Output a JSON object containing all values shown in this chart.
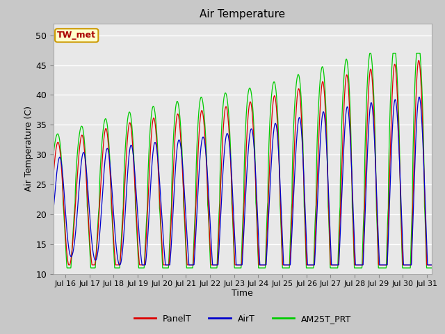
{
  "title": "Air Temperature",
  "xlabel": "Time",
  "ylabel": "Air Temperature (C)",
  "ylim": [
    10,
    52
  ],
  "yticks": [
    10,
    15,
    20,
    25,
    30,
    35,
    40,
    45,
    50
  ],
  "fig_bg_color": "#c8c8c8",
  "plot_bg_color": "#e8e8e8",
  "legend_labels": [
    "PanelT",
    "AirT",
    "AM25T_PRT"
  ],
  "legend_colors": [
    "#dd0000",
    "#0000cc",
    "#00cc00"
  ],
  "annotation_text": "TW_met",
  "annotation_fg": "#aa0000",
  "annotation_bg": "#ffffcc",
  "annotation_border": "#cc9900",
  "start_day": 15.5,
  "end_day": 31.2,
  "xtick_days": [
    16,
    17,
    18,
    19,
    20,
    21,
    22,
    23,
    24,
    25,
    26,
    27,
    28,
    29,
    30,
    31
  ],
  "xtick_labels": [
    "Jul 16",
    "Jul 17",
    "Jul 18",
    "Jul 19",
    "Jul 20",
    "Jul 21",
    "Jul 22",
    "Jul 23",
    "Jul 24",
    "Jul 25",
    "Jul 26",
    "Jul 27",
    "Jul 28",
    "Jul 29",
    "Jul 30",
    "Jul 31"
  ]
}
